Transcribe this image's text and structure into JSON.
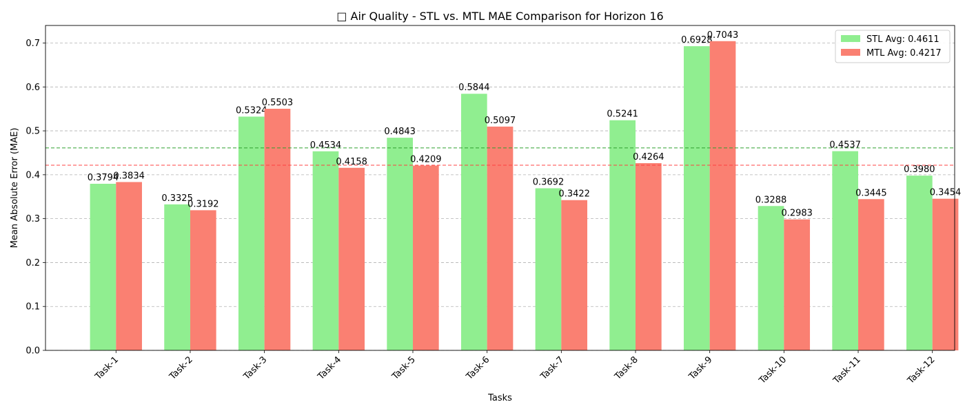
{
  "chart_data": {
    "type": "bar",
    "title": "□ Air Quality - STL vs. MTL MAE Comparison for Horizon 16",
    "xlabel": "Tasks",
    "ylabel": "Mean Absolute Error (MAE)",
    "ylim": [
      0,
      0.74
    ],
    "yticks": [
      "0.0",
      "0.1",
      "0.2",
      "0.3",
      "0.4",
      "0.5",
      "0.6",
      "0.7"
    ],
    "categories": [
      "Task-1",
      "Task-2",
      "Task-3",
      "Task-4",
      "Task-5",
      "Task-6",
      "Task-7",
      "Task-8",
      "Task-9",
      "Task-10",
      "Task-11",
      "Task-12"
    ],
    "series": [
      {
        "name": "STL Avg: 0.4611",
        "color": "#90ee90",
        "average": 0.4611,
        "avg_line_color": "#2ca02c",
        "values": [
          0.3794,
          0.3325,
          0.5324,
          0.4534,
          0.4843,
          0.5844,
          0.3692,
          0.5241,
          0.6928,
          0.3288,
          0.4537,
          0.398
        ],
        "labels": [
          "0.3794",
          "0.3325",
          "0.5324",
          "0.4534",
          "0.4843",
          "0.5844",
          "0.3692",
          "0.5241",
          "0.6928",
          "0.3288",
          "0.4537",
          "0.3980"
        ]
      },
      {
        "name": "MTL Avg: 0.4217",
        "color": "#fa8072",
        "average": 0.4217,
        "avg_line_color": "#ff4040",
        "values": [
          0.3834,
          0.3192,
          0.5503,
          0.4158,
          0.4209,
          0.5097,
          0.3422,
          0.4264,
          0.7043,
          0.2983,
          0.3445,
          0.3454
        ],
        "labels": [
          "0.3834",
          "0.3192",
          "0.5503",
          "0.4158",
          "0.4209",
          "0.5097",
          "0.3422",
          "0.4264",
          "0.7043",
          "0.2983",
          "0.3445",
          "0.3454"
        ]
      }
    ],
    "grid": "y-dashed",
    "legend": "top-right"
  }
}
